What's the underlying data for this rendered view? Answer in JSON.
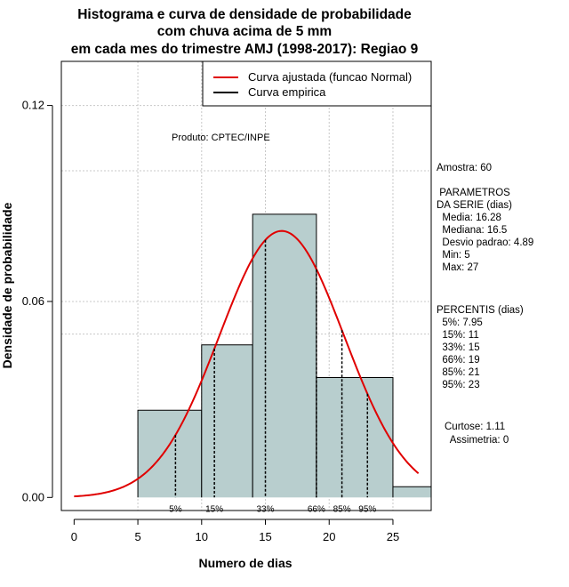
{
  "chart_data": {
    "type": "histogram",
    "title_lines": [
      "Histograma e curva de densidade de probabilidade",
      "com chuva acima de 5 mm",
      "em cada mes do trimestre AMJ (1998-2017): Regiao 9"
    ],
    "xlabel": "Numero de dias",
    "ylabel": "Densidade de probabilidade",
    "xlim": [
      -1,
      28
    ],
    "ylim": [
      -0.004,
      0.1335
    ],
    "x_ticks": [
      0,
      5,
      10,
      15,
      20,
      25
    ],
    "y_ticks": [
      0.0,
      0.06,
      0.12
    ],
    "y_tick_labels": [
      "0.00",
      "0.06",
      "0.12"
    ],
    "grid": true,
    "grid_x": [
      5,
      10,
      15,
      20,
      25
    ],
    "grid_y": [
      0.06,
      0.12
    ],
    "extra_grid_y": [
      0.1,
      0.05
    ],
    "bins": [
      {
        "from": 5,
        "to": 10,
        "density": 0.0267
      },
      {
        "from": 10,
        "to": 14,
        "density": 0.0467
      },
      {
        "from": 14,
        "to": 19,
        "density": 0.0867
      },
      {
        "from": 19,
        "to": 25,
        "density": 0.0367
      },
      {
        "from": 25,
        "to": 28,
        "density": 0.0033
      }
    ],
    "bin_color": "#b8cece",
    "normal_curve": {
      "mean": 16.28,
      "sd": 4.89,
      "from": 0,
      "to": 27,
      "color": "#e00000"
    },
    "percentile_lines": [
      {
        "label": "5%",
        "value": 7.95
      },
      {
        "label": "15%",
        "value": 11
      },
      {
        "label": "33%",
        "value": 15
      },
      {
        "label": "66%",
        "value": 19
      },
      {
        "label": "85%",
        "value": 21
      },
      {
        "label": "95%",
        "value": 23
      }
    ],
    "legend": {
      "position": "top-right",
      "entries": [
        {
          "label": "Curva ajustada (funcao Normal)",
          "color": "#e00000"
        },
        {
          "label": "Curva empirica",
          "color": "#000000"
        }
      ]
    },
    "annotation": "Produto: CPTEC/INPE",
    "stats_panel": [
      "Amostra: 60",
      " PARAMETROS",
      "DA SERIE (dias)",
      "  Media: 16.28",
      "  Mediana: 16.5",
      "  Desvio padrao: 4.89",
      "  Min: 5",
      "  Max: 27",
      "PERCENTIS (dias)",
      "  5%: 7.95",
      "  15%: 11",
      "  33%: 15",
      "  66%: 19",
      "  85%: 21",
      "  95%: 23",
      "Curtose: 1.11",
      "  Assimetria: 0"
    ]
  }
}
